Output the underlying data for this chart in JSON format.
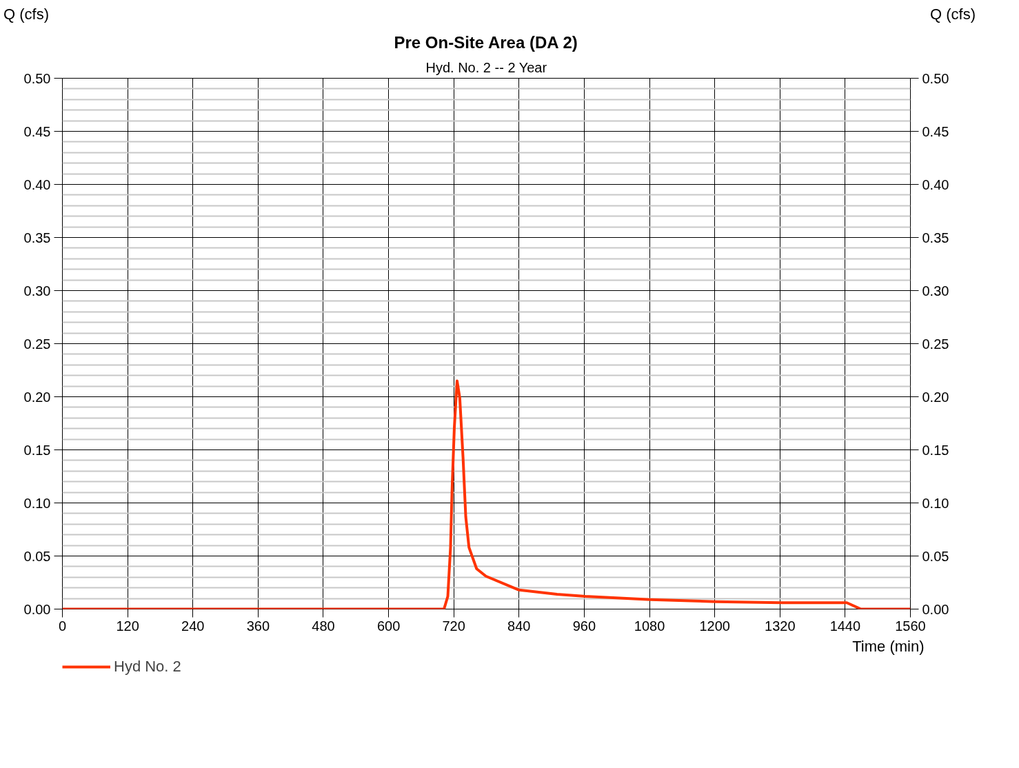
{
  "chart_data": {
    "type": "line",
    "title": "Pre On-Site Area (DA 2)",
    "subtitle": "Hyd. No. 2 -- 2 Year",
    "xlabel": "Time (min)",
    "ylabel": "Q (cfs)",
    "y2label": "Q (cfs)",
    "xlim": [
      0,
      1560
    ],
    "xticks": [
      0,
      120,
      240,
      360,
      480,
      600,
      720,
      840,
      960,
      1080,
      1200,
      1320,
      1440,
      1560
    ],
    "ylim": [
      0,
      0.5
    ],
    "yticks": [
      {
        "value": 0,
        "label": "0.00"
      },
      {
        "value": 0.05,
        "label": "0.05"
      },
      {
        "value": 0.1,
        "label": "0.10"
      },
      {
        "value": 0.15,
        "label": "0.15"
      },
      {
        "value": 0.2,
        "label": "0.20"
      },
      {
        "value": 0.25,
        "label": "0.25"
      },
      {
        "value": 0.3,
        "label": "0.30"
      },
      {
        "value": 0.35,
        "label": "0.35"
      },
      {
        "value": 0.4,
        "label": "0.40"
      },
      {
        "value": 0.45,
        "label": "0.45"
      },
      {
        "value": 0.5,
        "label": "0.50"
      }
    ],
    "y2lim": [
      0,
      0.5
    ],
    "y2ticks": [
      {
        "value": 0,
        "label": "0.00"
      },
      {
        "value": 0.05,
        "label": "0.05"
      },
      {
        "value": 0.1,
        "label": "0.10"
      },
      {
        "value": 0.15,
        "label": "0.15"
      },
      {
        "value": 0.2,
        "label": "0.20"
      },
      {
        "value": 0.25,
        "label": "0.25"
      },
      {
        "value": 0.3,
        "label": "0.30"
      },
      {
        "value": 0.35,
        "label": "0.35"
      },
      {
        "value": 0.4,
        "label": "0.40"
      },
      {
        "value": 0.45,
        "label": "0.45"
      },
      {
        "value": 0.5,
        "label": "0.50"
      }
    ],
    "grid": true,
    "legend": "bottom left",
    "marker": "none",
    "line_style": "solid",
    "series": [
      {
        "name": "Hyd No. 2",
        "color": "#ff3300",
        "x": [
          0,
          702,
          709,
          714,
          717,
          721,
          726,
          731,
          737,
          742,
          748,
          762,
          779,
          840,
          910,
          962,
          1082,
          1202,
          1322,
          1443,
          1469,
          1560
        ],
        "values": [
          0,
          0,
          0.012,
          0.058,
          0.115,
          0.171,
          0.215,
          0.199,
          0.143,
          0.087,
          0.058,
          0.038,
          0.031,
          0.018,
          0.014,
          0.012,
          0.009,
          0.007,
          0.006,
          0.006,
          0,
          0
        ]
      }
    ]
  }
}
